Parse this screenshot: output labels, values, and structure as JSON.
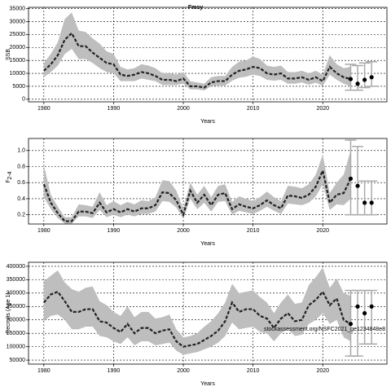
{
  "chart_data": [
    {
      "type": "band",
      "title": "Fmsy",
      "xlabel": "Years",
      "ylabel": "SSB",
      "x": [
        1980,
        1981,
        1982,
        1983,
        1984,
        1985,
        1986,
        1987,
        1988,
        1989,
        1990,
        1991,
        1992,
        1993,
        1994,
        1995,
        1996,
        1997,
        1998,
        1999,
        2000,
        2001,
        2002,
        2003,
        2004,
        2005,
        2006,
        2007,
        2008,
        2009,
        2010,
        2011,
        2012,
        2013,
        2014,
        2015,
        2016,
        2017,
        2018,
        2019,
        2020,
        2021,
        2022,
        2023,
        2024
      ],
      "median": [
        11000,
        13500,
        17000,
        23000,
        25500,
        20500,
        20500,
        18000,
        16000,
        14000,
        13500,
        9500,
        9000,
        9500,
        10500,
        10000,
        9000,
        7500,
        7500,
        7000,
        8000,
        5000,
        5000,
        4500,
        6500,
        7000,
        7000,
        9500,
        11000,
        11500,
        12500,
        12000,
        10000,
        9500,
        10000,
        8000,
        8000,
        8500,
        7500,
        8500,
        7000,
        12500,
        10000,
        8500,
        7800
      ],
      "upper": [
        14000,
        17500,
        22000,
        31000,
        33500,
        26500,
        26000,
        23500,
        21500,
        18500,
        17500,
        12500,
        11500,
        12000,
        13500,
        13000,
        12000,
        10000,
        10000,
        9500,
        10500,
        7000,
        6500,
        6000,
        8500,
        9000,
        9000,
        12500,
        14500,
        15000,
        16500,
        15500,
        13000,
        12500,
        13000,
        10500,
        10500,
        11000,
        10000,
        11000,
        9500,
        17000,
        13500,
        12000,
        12500
      ],
      "lower": [
        8500,
        10500,
        13000,
        17500,
        19500,
        15500,
        15500,
        14000,
        12000,
        10500,
        10000,
        7000,
        7000,
        7000,
        8000,
        7500,
        7000,
        5500,
        5500,
        5500,
        6000,
        3800,
        3800,
        3400,
        5000,
        5300,
        5300,
        7200,
        8300,
        8700,
        9500,
        9000,
        7500,
        7200,
        7500,
        6000,
        6000,
        6500,
        5600,
        6400,
        5200,
        9500,
        7500,
        6000,
        5000
      ],
      "forecast_x": [
        2024,
        2025,
        2026,
        2027
      ],
      "forecast": [
        7800,
        6000,
        7500,
        8500
      ],
      "forecast_lower": [
        3500,
        3500,
        4500,
        5000
      ],
      "forecast_upper": [
        13500,
        13000,
        14000,
        14500
      ],
      "band_color": "#bebebe",
      "line_color": "#222222",
      "errorbar_color": "#aaaaaa",
      "xlim": [
        1977.8,
        2029.2
      ],
      "xticks": [
        1980,
        1990,
        2000,
        2010,
        2020
      ],
      "ylim": [
        -1000,
        35500
      ],
      "yticks": [
        0,
        5000,
        10000,
        15000,
        20000,
        25000,
        30000,
        35000
      ],
      "grid": true
    },
    {
      "type": "band",
      "xlabel": "Years",
      "ylabel": "F",
      "ylabel_subscript": "2-4",
      "x": [
        1980,
        1981,
        1982,
        1983,
        1984,
        1985,
        1986,
        1987,
        1988,
        1989,
        1990,
        1991,
        1992,
        1993,
        1994,
        1995,
        1996,
        1997,
        1998,
        1999,
        2000,
        2001,
        2002,
        2003,
        2004,
        2005,
        2006,
        2007,
        2008,
        2009,
        2010,
        2011,
        2012,
        2013,
        2014,
        2015,
        2016,
        2017,
        2018,
        2019,
        2020,
        2021,
        2022,
        2023,
        2024
      ],
      "median": [
        0.58,
        0.35,
        0.22,
        0.12,
        0.12,
        0.24,
        0.24,
        0.22,
        0.35,
        0.23,
        0.27,
        0.23,
        0.27,
        0.24,
        0.28,
        0.28,
        0.32,
        0.48,
        0.47,
        0.38,
        0.2,
        0.5,
        0.35,
        0.45,
        0.32,
        0.45,
        0.47,
        0.27,
        0.33,
        0.3,
        0.28,
        0.32,
        0.38,
        0.32,
        0.28,
        0.44,
        0.43,
        0.41,
        0.45,
        0.55,
        0.75,
        0.35,
        0.45,
        0.47,
        0.65
      ],
      "upper": [
        0.82,
        0.45,
        0.3,
        0.17,
        0.17,
        0.33,
        0.32,
        0.3,
        0.48,
        0.32,
        0.37,
        0.32,
        0.36,
        0.33,
        0.38,
        0.37,
        0.42,
        0.63,
        0.62,
        0.5,
        0.28,
        0.6,
        0.45,
        0.56,
        0.42,
        0.56,
        0.58,
        0.36,
        0.43,
        0.4,
        0.37,
        0.42,
        0.49,
        0.42,
        0.37,
        0.56,
        0.55,
        0.53,
        0.58,
        0.7,
        0.95,
        0.47,
        0.6,
        0.7,
        1.0
      ],
      "lower": [
        0.42,
        0.27,
        0.16,
        0.09,
        0.09,
        0.18,
        0.18,
        0.16,
        0.26,
        0.17,
        0.2,
        0.17,
        0.2,
        0.18,
        0.21,
        0.21,
        0.24,
        0.37,
        0.36,
        0.29,
        0.15,
        0.4,
        0.27,
        0.35,
        0.24,
        0.36,
        0.37,
        0.2,
        0.25,
        0.23,
        0.21,
        0.25,
        0.3,
        0.25,
        0.21,
        0.34,
        0.33,
        0.32,
        0.35,
        0.43,
        0.58,
        0.26,
        0.33,
        0.32,
        0.4
      ],
      "forecast_x": [
        2024,
        2025,
        2026,
        2027
      ],
      "forecast": [
        0.65,
        0.56,
        0.35,
        0.35
      ],
      "forecast_lower": [
        0.2,
        0.2,
        0.2,
        0.2
      ],
      "forecast_upper": [
        1.13,
        1.05,
        0.62,
        0.62
      ],
      "band_color": "#bebebe",
      "line_color": "#222222",
      "errorbar_color": "#aaaaaa",
      "xlim": [
        1977.8,
        2029.2
      ],
      "xticks": [
        1980,
        1990,
        2000,
        2010,
        2020
      ],
      "ylim": [
        0.085,
        1.15
      ],
      "yticks": [
        0.2,
        0.4,
        0.6,
        0.8,
        {
          "value": 1,
          "label": "1.0"
        }
      ],
      "grid": true
    },
    {
      "type": "band",
      "xlabel": "Years",
      "ylabel": "Recruits (Age 1)",
      "annotation": "stockassessment.org/NSFC2021_ge1234848e8",
      "x": [
        1980,
        1981,
        1982,
        1983,
        1984,
        1985,
        1986,
        1987,
        1988,
        1989,
        1990,
        1991,
        1992,
        1993,
        1994,
        1995,
        1996,
        1997,
        1998,
        1999,
        2000,
        2001,
        2002,
        2003,
        2004,
        2005,
        2006,
        2007,
        2008,
        2009,
        2010,
        2011,
        2012,
        2013,
        2014,
        2015,
        2016,
        2017,
        2018,
        2019,
        2020,
        2021,
        2022,
        2023,
        2024
      ],
      "median": [
        265000,
        295000,
        305000,
        270000,
        230000,
        230000,
        240000,
        240000,
        195000,
        190000,
        170000,
        155000,
        185000,
        150000,
        170000,
        170000,
        150000,
        160000,
        165000,
        120000,
        100000,
        105000,
        110000,
        125000,
        140000,
        160000,
        195000,
        265000,
        230000,
        240000,
        240000,
        215000,
        205000,
        170000,
        205000,
        225000,
        195000,
        200000,
        255000,
        275000,
        305000,
        255000,
        280000,
        200000,
        185000
      ],
      "upper": [
        345000,
        365000,
        385000,
        340000,
        315000,
        305000,
        320000,
        325000,
        270000,
        255000,
        230000,
        215000,
        250000,
        210000,
        230000,
        230000,
        205000,
        210000,
        220000,
        165000,
        135000,
        140000,
        150000,
        175000,
        195000,
        225000,
        265000,
        335000,
        300000,
        305000,
        310000,
        285000,
        265000,
        225000,
        265000,
        295000,
        260000,
        265000,
        330000,
        360000,
        395000,
        320000,
        355000,
        300000,
        290000
      ],
      "lower": [
        195000,
        215000,
        220000,
        200000,
        165000,
        165000,
        175000,
        175000,
        140000,
        135000,
        120000,
        110000,
        135000,
        105000,
        120000,
        120000,
        105000,
        110000,
        115000,
        85000,
        70000,
        75000,
        80000,
        90000,
        100000,
        115000,
        140000,
        190000,
        165000,
        170000,
        175000,
        155000,
        150000,
        120000,
        150000,
        165000,
        140000,
        145000,
        185000,
        200000,
        225000,
        185000,
        200000,
        135000,
        120000
      ],
      "forecast_x": [
        2024,
        2025,
        2026,
        2027
      ],
      "forecast": [
        185000,
        250000,
        225000,
        250000
      ],
      "forecast_lower": [
        65000,
        65000,
        110000,
        110000
      ],
      "forecast_upper": [
        310000,
        310000,
        310000,
        310000
      ],
      "band_color": "#bebebe",
      "line_color": "#222222",
      "errorbar_color": "#aaaaaa",
      "xlim": [
        1977.8,
        2029.2
      ],
      "xticks": [
        1980,
        1990,
        2000,
        2010,
        2020
      ],
      "ylim": [
        35000,
        415000
      ],
      "yticks": [
        50000,
        100000,
        150000,
        200000,
        250000,
        300000,
        350000,
        400000
      ],
      "grid": true
    }
  ]
}
